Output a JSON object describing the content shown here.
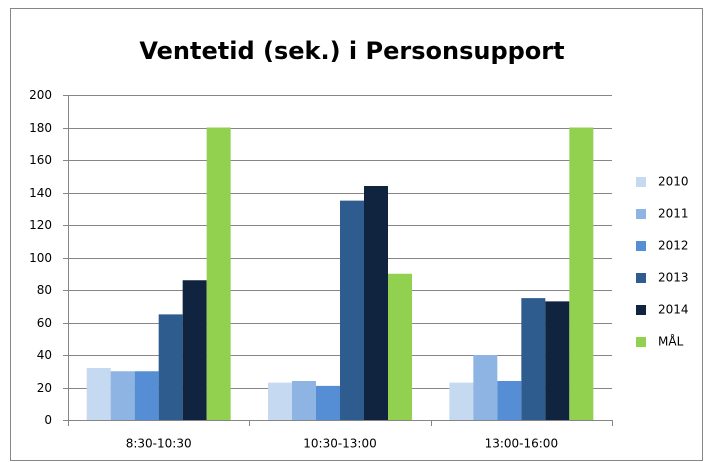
{
  "chart_data": {
    "type": "bar",
    "title": "Ventetid (sek.) i Personsupport",
    "categories": [
      "8:30-10:30",
      "10:30-13:00",
      "13:00-16:00"
    ],
    "series": [
      {
        "name": "2010",
        "color": "#c5d9f1",
        "values": [
          32,
          23,
          23
        ]
      },
      {
        "name": "2011",
        "color": "#8db4e2",
        "values": [
          30,
          24,
          40
        ]
      },
      {
        "name": "2012",
        "color": "#558ed5",
        "values": [
          30,
          21,
          24
        ]
      },
      {
        "name": "2013",
        "color": "#2f5c8f",
        "values": [
          65,
          135,
          75
        ]
      },
      {
        "name": "2014",
        "color": "#10243f",
        "values": [
          86,
          144,
          73
        ]
      },
      {
        "name": "MÅL",
        "color": "#92d050",
        "values": [
          180,
          90,
          180
        ]
      }
    ],
    "ylim": [
      0,
      200
    ],
    "yticks": [
      0,
      20,
      40,
      60,
      80,
      100,
      120,
      140,
      160,
      180,
      200
    ],
    "grid": true,
    "legend": "right"
  }
}
